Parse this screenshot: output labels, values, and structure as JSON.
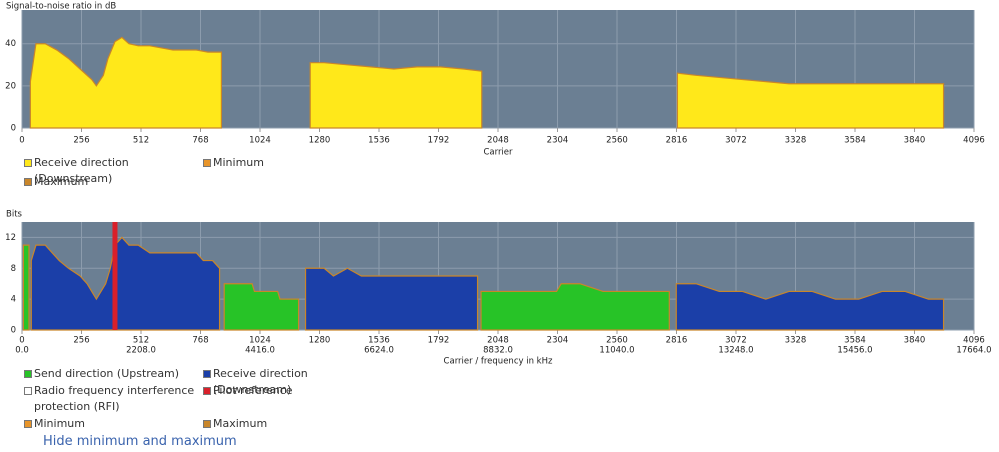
{
  "chart_data": [
    {
      "type": "area",
      "ylabel": "Signal-to-noise ratio in dB",
      "xlabel": "Carrier",
      "xlim": [
        0,
        4096
      ],
      "xticks": [
        0,
        256,
        512,
        768,
        1024,
        1280,
        1536,
        1792,
        2048,
        2304,
        2560,
        2816,
        3072,
        3328,
        3584,
        3840,
        4096
      ],
      "ylim": [
        0,
        56
      ],
      "yticks": [
        0,
        20,
        40
      ],
      "grid": true,
      "series": [
        {
          "name": "Receive direction (Downstream)",
          "color": "#ffe81a",
          "x": [
            36,
            60,
            100,
            150,
            200,
            250,
            300,
            320,
            350,
            370,
            400,
            430,
            460,
            500,
            550,
            600,
            650,
            700,
            750,
            800,
            858,
            null,
            1240,
            1300,
            1400,
            1500,
            1600,
            1700,
            1800,
            1900,
            1978,
            null,
            2820,
            2900,
            3000,
            3100,
            3200,
            3300,
            3400,
            3500,
            3600,
            3700,
            3800,
            3900,
            3965
          ],
          "values": [
            22,
            40,
            40,
            37,
            33,
            28,
            23,
            20,
            25,
            33,
            41,
            43,
            40,
            39,
            39,
            38,
            37,
            37,
            37,
            36,
            36,
            null,
            31,
            31,
            30,
            29,
            28,
            29,
            29,
            28,
            27,
            null,
            26,
            25,
            24,
            23,
            22,
            21,
            21,
            21,
            21,
            21,
            21,
            21,
            21
          ]
        },
        {
          "name": "Minimum",
          "color": "#e8952a"
        },
        {
          "name": "Maximum",
          "color": "#c9862a"
        }
      ]
    },
    {
      "type": "area",
      "ylabel": "Bits",
      "xlabel": "Carrier / frequency in kHz",
      "xlim": [
        0,
        4096
      ],
      "xticks": [
        0,
        256,
        512,
        768,
        1024,
        1280,
        1536,
        1792,
        2048,
        2304,
        2560,
        2816,
        3072,
        3328,
        3584,
        3840,
        4096
      ],
      "x2lim": [
        0,
        17664
      ],
      "x2ticks": [
        {
          "value": 0,
          "label": "0.0"
        },
        {
          "value": 2208,
          "label": "2208.0"
        },
        {
          "value": 4416,
          "label": "4416.0"
        },
        {
          "value": 6624,
          "label": "6624.0"
        },
        {
          "value": 8832,
          "label": "8832.0"
        },
        {
          "value": 11040,
          "label": "11040.0"
        },
        {
          "value": 13248,
          "label": "13248.0"
        },
        {
          "value": 15456,
          "label": "15456.0"
        },
        {
          "value": 17664,
          "label": "17664.0"
        }
      ],
      "ylim": [
        0,
        14
      ],
      "yticks": [
        0,
        4,
        8,
        12
      ],
      "grid": true,
      "series": [
        {
          "name": "Send direction (Upstream)",
          "color": "#27c327",
          "x": [
            6,
            30,
            null,
            870,
            990,
            1000,
            1100,
            1110,
            1190,
            null,
            1975,
            2100,
            2200,
            2300,
            2320,
            2400,
            2500,
            2600,
            2700,
            2785
          ],
          "values": [
            11,
            11,
            null,
            6,
            6,
            5,
            5,
            4,
            4,
            null,
            5,
            5,
            5,
            5,
            6,
            6,
            5,
            5,
            5,
            5
          ]
        },
        {
          "name": "Receive direction (Downstream)",
          "color": "#1b3fa8",
          "x": [
            40,
            60,
            100,
            130,
            160,
            200,
            250,
            280,
            300,
            320,
            340,
            360,
            380,
            400,
            430,
            460,
            500,
            550,
            600,
            650,
            700,
            750,
            780,
            820,
            850,
            null,
            1220,
            1300,
            1340,
            1400,
            1460,
            1550,
            1700,
            1900,
            1960,
            null,
            2815,
            2900,
            3000,
            3100,
            3200,
            3300,
            3400,
            3500,
            3600,
            3700,
            3800,
            3900,
            3965
          ],
          "values": [
            9,
            11,
            11,
            10,
            9,
            8,
            7,
            6,
            5,
            4,
            5,
            6,
            8,
            11,
            12,
            11,
            11,
            10,
            10,
            10,
            10,
            10,
            9,
            9,
            8,
            null,
            8,
            8,
            7,
            8,
            7,
            7,
            7,
            7,
            7,
            null,
            6,
            6,
            5,
            5,
            4,
            5,
            5,
            4,
            4,
            5,
            5,
            4,
            4
          ]
        },
        {
          "name": "Radio frequency interference protection (RFI)",
          "color": "#ffffff"
        },
        {
          "name": "Pilot reference",
          "color": "#d9202a",
          "x": [
            400
          ]
        },
        {
          "name": "Minimum",
          "color": "#e8952a"
        },
        {
          "name": "Maximum",
          "color": "#c9862a"
        }
      ]
    }
  ],
  "link": "Hide minimum and maximum"
}
